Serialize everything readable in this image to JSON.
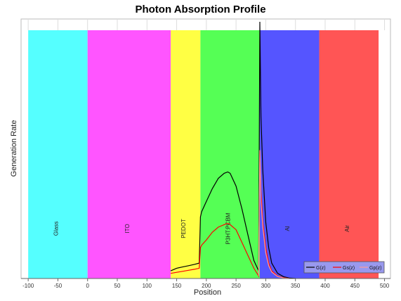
{
  "chart_data": {
    "type": "area",
    "title": "Photon Absorption Profile",
    "xlabel": "Position",
    "ylabel": "Generation Rate",
    "xlim": [
      -112,
      510
    ],
    "ylim": [
      0,
      1
    ],
    "xticks": [
      -100,
      -50,
      0,
      50,
      100,
      150,
      200,
      250,
      300,
      350,
      400,
      450,
      500
    ],
    "layers": [
      {
        "name": "Glass",
        "x0": -100,
        "x1": 0,
        "color": "#55ffff"
      },
      {
        "name": "ITO",
        "x0": 0,
        "x1": 140,
        "color": "#ff55ff"
      },
      {
        "name": "PEDOT",
        "x0": 140,
        "x1": 190,
        "color": "#ffff44"
      },
      {
        "name": "P3HT:PCBM",
        "x0": 190,
        "x1": 290,
        "color": "#55ff55"
      },
      {
        "name": "Al",
        "x0": 290,
        "x1": 390,
        "color": "#5555ff"
      },
      {
        "name": "Air",
        "x0": 390,
        "x1": 490,
        "color": "#ff5555"
      }
    ],
    "series": [
      {
        "name": "G(z)",
        "color": "#000000",
        "x": [
          140,
          150,
          160,
          170,
          180,
          188,
          190,
          192,
          200,
          210,
          220,
          230,
          236,
          240,
          250,
          260,
          270,
          280,
          288,
          290,
          292,
          295,
          300,
          305,
          310,
          320,
          330,
          340,
          350
        ],
        "y": [
          0.03,
          0.04,
          0.045,
          0.05,
          0.055,
          0.06,
          0.24,
          0.26,
          0.3,
          0.35,
          0.39,
          0.41,
          0.415,
          0.41,
          0.36,
          0.27,
          0.17,
          0.07,
          0.03,
          1.0,
          0.63,
          0.42,
          0.22,
          0.12,
          0.06,
          0.02,
          0.007,
          0.002,
          0.0
        ]
      },
      {
        "name": "Gs(z)",
        "color": "#ff0000",
        "x": [
          140,
          150,
          160,
          170,
          180,
          188,
          190,
          192,
          200,
          210,
          220,
          230,
          236,
          240,
          250,
          260,
          270,
          280,
          288,
          290,
          292,
          295,
          300,
          305,
          310,
          320,
          330,
          340
        ],
        "y": [
          0.02,
          0.024,
          0.028,
          0.032,
          0.036,
          0.04,
          0.12,
          0.13,
          0.15,
          0.18,
          0.2,
          0.21,
          0.215,
          0.21,
          0.19,
          0.14,
          0.09,
          0.04,
          0.01,
          0.5,
          0.34,
          0.22,
          0.12,
          0.06,
          0.03,
          0.01,
          0.003,
          0.0
        ]
      },
      {
        "name": "Gp(z)",
        "color": "#ff9a9a",
        "x": [
          288,
          290,
          292,
          295,
          300,
          305,
          310,
          320,
          330,
          340
        ],
        "y": [
          0.01,
          0.5,
          0.3,
          0.2,
          0.1,
          0.05,
          0.025,
          0.008,
          0.002,
          0.0
        ]
      }
    ],
    "legend": "bottom-right"
  }
}
